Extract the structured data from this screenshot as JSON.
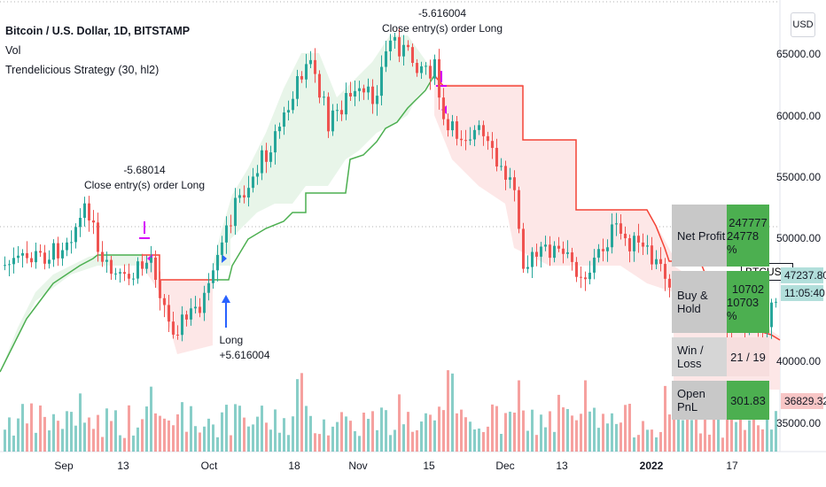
{
  "legend": {
    "title": "Bitcoin / U.S. Dollar, 1D, BITSTAMP",
    "vol": "Vol",
    "strategy": "Trendelicious Strategy (30, hl2)"
  },
  "currency_button": "USD",
  "price_axis": [
    "65000.00",
    "60000.00",
    "55000.00",
    "50000.00",
    "40000.00",
    "35000.00"
  ],
  "tags": {
    "symbol": "BTCUSD",
    "last_price": "47237.80",
    "countdown": "11:05:40",
    "volume": "36829.32"
  },
  "time_axis": [
    "Sep",
    "13",
    "Oct",
    "18",
    "Nov",
    "15",
    "Dec",
    "13",
    "2022",
    "17"
  ],
  "annotations": {
    "trade1_value": "-5.68014",
    "trade1_text": "Close entry(s) order Long",
    "trade2_value": "-5.616004",
    "trade2_text": "Close entry(s) order Long",
    "long_text": "Long",
    "long_value": "+5.616004"
  },
  "stats_table": [
    {
      "label": "Net Profit",
      "value1": "247777",
      "value2": "24778 %"
    },
    {
      "label": "Buy & Hold",
      "value1": "10702",
      "value2": "10703 %"
    },
    {
      "label": "Win / Loss",
      "value1": "21 / 19",
      "value2": ""
    },
    {
      "label": "Open PnL",
      "value1": "301.83",
      "value2": ""
    }
  ],
  "colors": {
    "up": "#26a69a",
    "down": "#ef5350",
    "support_line": "#4caf50",
    "resistance_line": "#f44336",
    "signal": "#d500f9",
    "long_arrow": "#2962ff"
  }
}
